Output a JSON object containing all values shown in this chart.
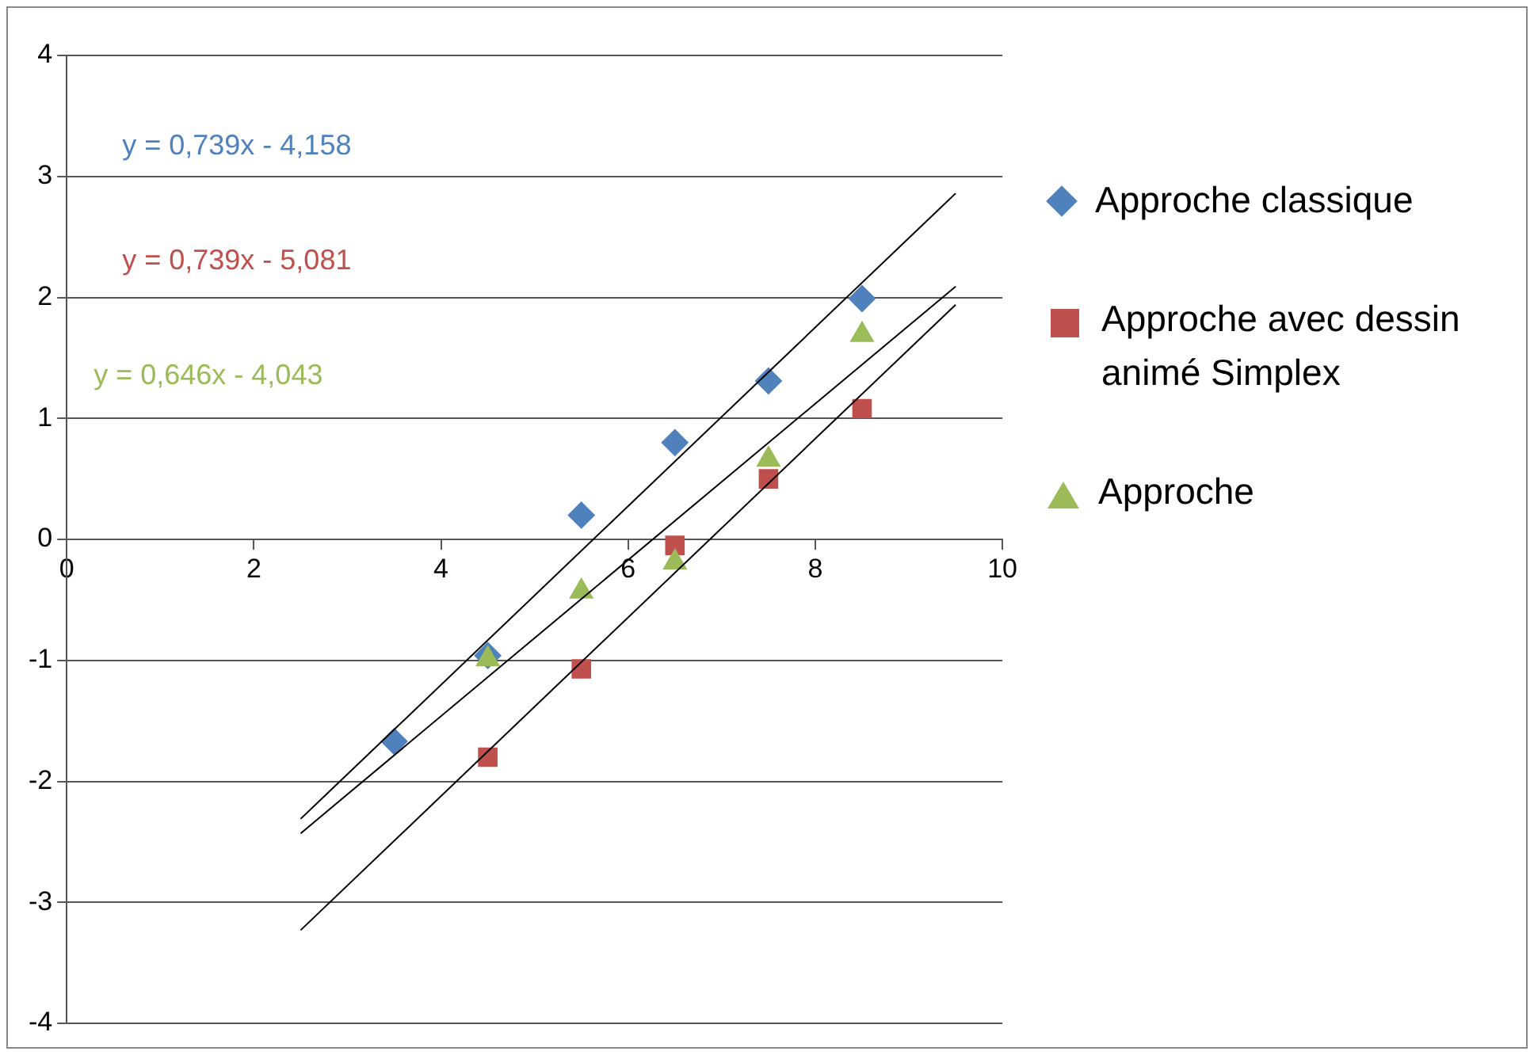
{
  "chart_data": {
    "type": "scatter",
    "xlim": [
      0,
      10
    ],
    "xticks": [
      0,
      2,
      4,
      6,
      8,
      10
    ],
    "ylim": [
      -4,
      4
    ],
    "yticks": [
      -4,
      -3,
      -2,
      -1,
      0,
      1,
      2,
      3,
      4
    ],
    "grid": "y",
    "legend": "right",
    "annotations": [
      "y = 0,739x - 4,158",
      "y = 0,739x - 5,081",
      "y = 0,646x - 4,043"
    ],
    "series": [
      {
        "name": "Approche classique",
        "color": "#4f81bd",
        "marker": "diamond",
        "x": [
          3.5,
          4.5,
          5.5,
          6.5,
          7.5,
          8.5
        ],
        "values": [
          -1.67,
          -0.96,
          0.2,
          0.8,
          1.31,
          1.99
        ]
      },
      {
        "name": "Approche avec dessin animé Simplex",
        "color": "#c0504d",
        "marker": "square",
        "x": [
          4.5,
          5.5,
          6.5,
          7.5,
          8.5
        ],
        "values": [
          -1.8,
          -1.07,
          -0.05,
          0.5,
          1.08
        ]
      },
      {
        "name": "Approche",
        "color": "#9bbb59",
        "marker": "triangle",
        "x": [
          4.5,
          5.5,
          6.5,
          7.5,
          8.5
        ],
        "values": [
          -0.99,
          -0.43,
          -0.19,
          0.66,
          1.69
        ]
      },
      {
        "type": "line",
        "color": "#000000",
        "marker": "none",
        "x": [
          2.5,
          9.5
        ],
        "values": [
          -2.31,
          2.86
        ]
      },
      {
        "type": "line",
        "color": "#000000",
        "marker": "none",
        "x": [
          2.5,
          9.5
        ],
        "values": [
          -3.23,
          1.94
        ]
      },
      {
        "type": "line",
        "color": "#000000",
        "marker": "none",
        "x": [
          2.5,
          9.5
        ],
        "values": [
          -2.43,
          2.09
        ]
      }
    ]
  }
}
